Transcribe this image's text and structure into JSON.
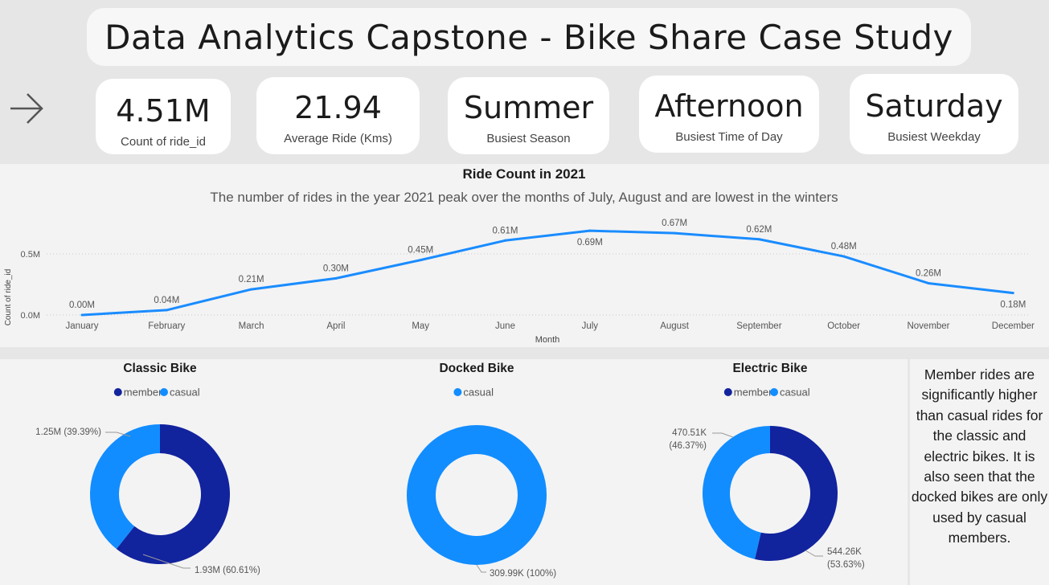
{
  "header": {
    "title": "Data Analytics Capstone - Bike Share Case Study"
  },
  "nav": {
    "icon": "arrow-right-icon"
  },
  "kpis": [
    {
      "value": "4.51M",
      "label": "Count of ride_id"
    },
    {
      "value": "21.94",
      "label": "Average Ride (Kms)"
    },
    {
      "value": "Summer",
      "label": "Busiest Season"
    },
    {
      "value": "Afternoon",
      "label": "Busiest Time of Day"
    },
    {
      "value": "Saturday",
      "label": "Busiest Weekday"
    }
  ],
  "colors": {
    "line": "#1a8cff",
    "member": "#12239e",
    "casual": "#118dff",
    "panel": "#f3f3f3",
    "background": "#e6e6e6"
  },
  "note": {
    "text": "Member rides are significantly higher than casual rides for the classic and electric bikes. It is also seen that the docked bikes are only used by casual members."
  },
  "chart_data": [
    {
      "type": "line",
      "title": "Ride Count in 2021",
      "subtitle": "The number of rides in the year 2021 peak over the months of July, August and are lowest in the winters",
      "xlabel": "Month",
      "ylabel": "Count of ride_id",
      "categories": [
        "January",
        "February",
        "March",
        "April",
        "May",
        "June",
        "July",
        "August",
        "September",
        "October",
        "November",
        "December"
      ],
      "values": [
        0.0,
        0.04,
        0.21,
        0.3,
        0.45,
        0.61,
        0.69,
        0.67,
        0.62,
        0.48,
        0.26,
        0.18
      ],
      "data_labels": [
        "0.00M",
        "0.04M",
        "0.21M",
        "0.30M",
        "0.45M",
        "0.61M",
        "0.69M",
        "0.67M",
        "0.62M",
        "0.48M",
        "0.26M",
        "0.18M"
      ],
      "label_below": [
        false,
        false,
        false,
        false,
        false,
        false,
        true,
        false,
        false,
        false,
        false,
        true
      ],
      "yticks": [
        0.0,
        0.5
      ],
      "ytick_labels": [
        "0.0M",
        "0.5M"
      ],
      "ylim": [
        0,
        0.72
      ],
      "grid": true
    },
    {
      "type": "pie",
      "title": "Classic Bike",
      "legend": [
        "member",
        "casual"
      ],
      "slices": [
        {
          "name": "member",
          "value": 1.93,
          "label": "1.93M (60.61%)"
        },
        {
          "name": "casual",
          "value": 1.25,
          "label": "1.25M (39.39%)"
        }
      ]
    },
    {
      "type": "pie",
      "title": "Docked Bike",
      "legend": [
        "casual"
      ],
      "slices": [
        {
          "name": "casual",
          "value": 309.99,
          "label": "309.99K (100%)"
        }
      ]
    },
    {
      "type": "pie",
      "title": "Electric Bike",
      "legend": [
        "member",
        "casual"
      ],
      "slices": [
        {
          "name": "member",
          "value": 544.26,
          "label": "544.26K (53.63%)"
        },
        {
          "name": "casual",
          "value": 470.51,
          "label": "470.51K (46.37%)"
        }
      ]
    }
  ]
}
